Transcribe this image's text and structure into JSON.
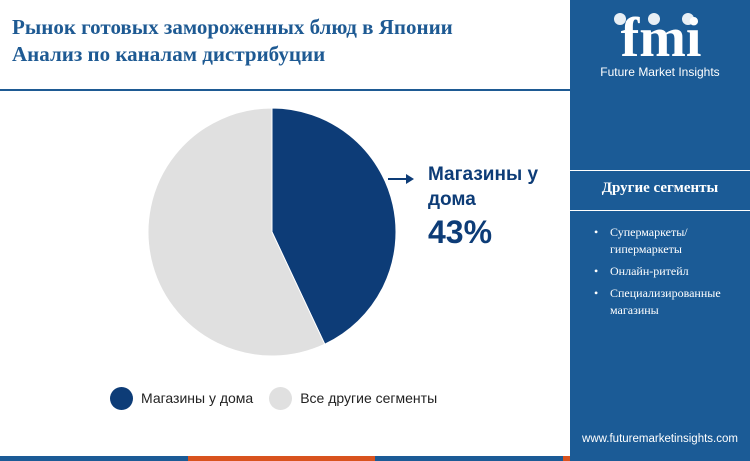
{
  "title": {
    "line1": "Рынок готовых замороженных блюд в Японии",
    "line2": "Анализ по каналам дистрибуции"
  },
  "chart_data": {
    "type": "pie",
    "slices": [
      {
        "name": "Магазины у дома",
        "value": 43,
        "color": "#0d3c77"
      },
      {
        "name": "Все другие сегменты",
        "value": 57,
        "color": "#e0e0e0"
      }
    ],
    "callout": {
      "label": "Магазины у дома",
      "value": "43%"
    },
    "legend_position": "bottom"
  },
  "sidebar": {
    "logo_text": "fmi",
    "logo_caption": "Future Market Insights",
    "heading": "Другие сегменты",
    "items": [
      "Супермаркеты/ гипермаркеты",
      "Онлайн-ритейл",
      "Специализированные магазины"
    ],
    "website": "www.futuremarketinsights.com"
  },
  "colors": {
    "brand_blue": "#1b5b96",
    "dark_navy": "#0d3c77",
    "light_gray": "#e0e0e0",
    "bottom_bar": [
      "#1b5b96",
      "#d9531e",
      "#1b5b96",
      "#d9531e"
    ]
  }
}
